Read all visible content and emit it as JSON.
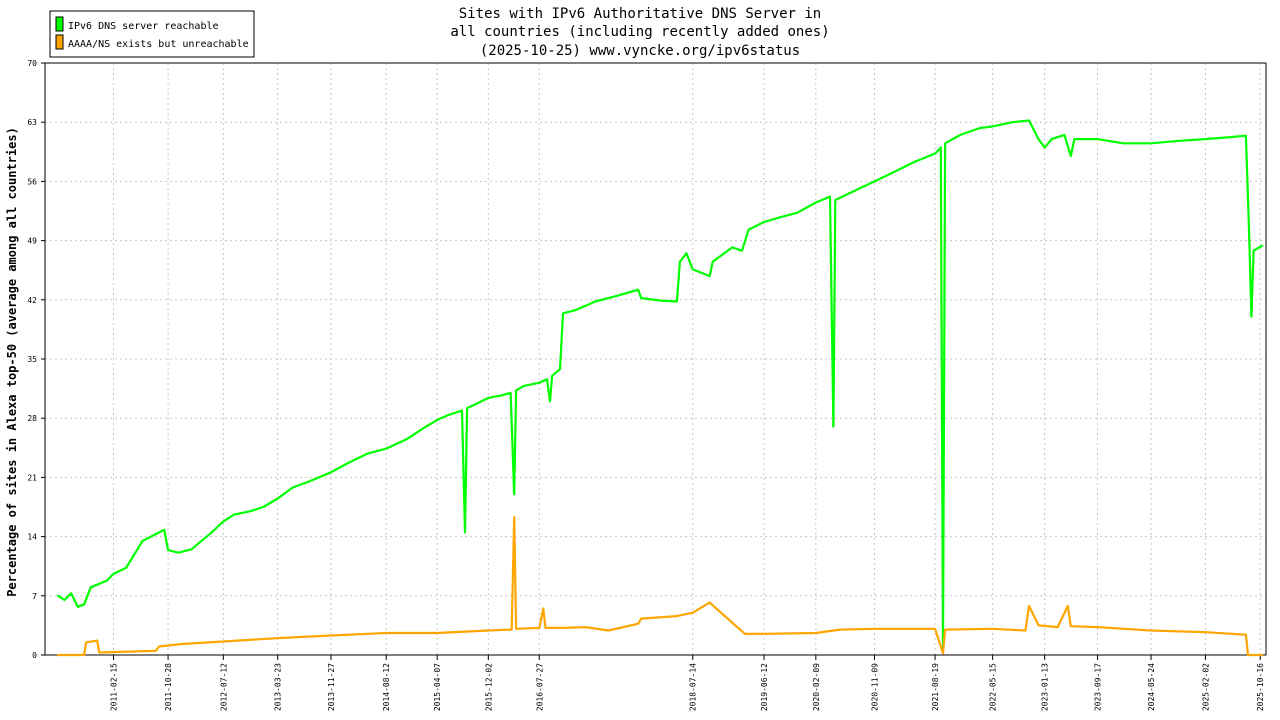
{
  "chart_data": {
    "type": "line",
    "title": [
      "Sites with IPv6 Authoritative DNS Server in",
      "all countries (including recently added ones)",
      "(2025-10-25) www.vyncke.org/ipv6status"
    ],
    "ylabel": "Percentage of sites in Alexa top-50 (average among all countries)",
    "xlabel": "",
    "ylim": [
      0,
      70
    ],
    "yticks": [
      0,
      7,
      14,
      21,
      28,
      35,
      42,
      49,
      56,
      63,
      70
    ],
    "xlim": [
      "2010-04-01",
      "2025-11-12"
    ],
    "xticks": [
      "2011-02-15",
      "2011-10-28",
      "2012-07-12",
      "2013-03-23",
      "2013-11-27",
      "2014-08-12",
      "2015-04-07",
      "2015-12-02",
      "2016-07-27",
      "2018-07-14",
      "2019-06-12",
      "2020-02-09",
      "2020-11-09",
      "2021-08-19",
      "2022-05-15",
      "2023-01-13",
      "2023-09-17",
      "2024-05-24",
      "2025-02-02",
      "2025-10-16"
    ],
    "grid": true,
    "legend_position": "top-left",
    "series": [
      {
        "name": "IPv6 DNS server reachable",
        "color": "#00ff00",
        "points": [
          [
            "2010-06-01",
            7.0
          ],
          [
            "2010-07-01",
            6.5
          ],
          [
            "2010-08-01",
            7.3
          ],
          [
            "2010-09-01",
            5.7
          ],
          [
            "2010-10-01",
            6.0
          ],
          [
            "2010-11-01",
            8.0
          ],
          [
            "2011-01-15",
            8.8
          ],
          [
            "2011-02-15",
            9.6
          ],
          [
            "2011-04-15",
            10.3
          ],
          [
            "2011-07-01",
            13.5
          ],
          [
            "2011-09-01",
            14.3
          ],
          [
            "2011-10-10",
            14.8
          ],
          [
            "2011-10-28",
            12.4
          ],
          [
            "2011-12-15",
            12.1
          ],
          [
            "2012-02-15",
            12.5
          ],
          [
            "2012-04-01",
            13.5
          ],
          [
            "2012-05-15",
            14.4
          ],
          [
            "2012-07-12",
            15.8
          ],
          [
            "2012-09-01",
            16.6
          ],
          [
            "2012-11-15",
            17.0
          ],
          [
            "2013-01-15",
            17.5
          ],
          [
            "2013-03-23",
            18.5
          ],
          [
            "2013-06-01",
            19.8
          ],
          [
            "2013-08-15",
            20.5
          ],
          [
            "2013-11-27",
            21.6
          ],
          [
            "2014-02-15",
            22.7
          ],
          [
            "2014-05-15",
            23.8
          ],
          [
            "2014-08-12",
            24.4
          ],
          [
            "2014-11-15",
            25.5
          ],
          [
            "2015-02-01",
            26.8
          ],
          [
            "2015-04-07",
            27.8
          ],
          [
            "2015-06-01",
            28.4
          ],
          [
            "2015-08-01",
            28.9
          ],
          [
            "2015-08-15",
            14.5
          ],
          [
            "2015-08-25",
            29.2
          ],
          [
            "2015-10-15",
            29.8
          ],
          [
            "2015-12-02",
            30.4
          ],
          [
            "2016-02-01",
            30.7
          ],
          [
            "2016-03-15",
            31.0
          ],
          [
            "2016-04-01",
            19.0
          ],
          [
            "2016-04-10",
            31.3
          ],
          [
            "2016-05-15",
            31.8
          ],
          [
            "2016-07-27",
            32.2
          ],
          [
            "2016-09-01",
            32.6
          ],
          [
            "2016-09-15",
            30.0
          ],
          [
            "2016-09-25",
            33.0
          ],
          [
            "2016-11-01",
            33.8
          ],
          [
            "2016-11-15",
            40.4
          ],
          [
            "2017-01-15",
            40.8
          ],
          [
            "2017-04-15",
            41.8
          ],
          [
            "2017-07-15",
            42.4
          ],
          [
            "2017-11-01",
            43.2
          ],
          [
            "2017-11-15",
            42.2
          ],
          [
            "2018-02-15",
            41.9
          ],
          [
            "2018-05-01",
            41.8
          ],
          [
            "2018-05-15",
            46.5
          ],
          [
            "2018-06-15",
            47.5
          ],
          [
            "2018-07-14",
            45.6
          ],
          [
            "2018-10-01",
            44.8
          ],
          [
            "2018-10-15",
            46.5
          ],
          [
            "2019-01-15",
            48.2
          ],
          [
            "2019-03-01",
            47.8
          ],
          [
            "2019-04-01",
            50.3
          ],
          [
            "2019-06-12",
            51.2
          ],
          [
            "2019-09-01",
            51.8
          ],
          [
            "2019-11-15",
            52.3
          ],
          [
            "2020-02-09",
            53.5
          ],
          [
            "2020-04-15",
            54.2
          ],
          [
            "2020-05-01",
            27.0
          ],
          [
            "2020-05-10",
            53.8
          ],
          [
            "2020-07-15",
            54.6
          ],
          [
            "2020-11-09",
            56.0
          ],
          [
            "2021-02-15",
            57.2
          ],
          [
            "2021-05-15",
            58.3
          ],
          [
            "2021-08-19",
            59.3
          ],
          [
            "2021-09-15",
            60.0
          ],
          [
            "2021-09-25",
            1.0
          ],
          [
            "2021-10-05",
            60.5
          ],
          [
            "2021-12-15",
            61.5
          ],
          [
            "2022-03-15",
            62.3
          ],
          [
            "2022-05-15",
            62.5
          ],
          [
            "2022-08-15",
            63.0
          ],
          [
            "2022-11-01",
            63.2
          ],
          [
            "2022-12-15",
            61.0
          ],
          [
            "2023-01-13",
            60.0
          ],
          [
            "2023-02-15",
            61.0
          ],
          [
            "2023-04-15",
            61.5
          ],
          [
            "2023-05-15",
            59.0
          ],
          [
            "2023-06-01",
            61.0
          ],
          [
            "2023-09-17",
            61.0
          ],
          [
            "2024-01-15",
            60.5
          ],
          [
            "2024-05-24",
            60.5
          ],
          [
            "2024-10-01",
            60.8
          ],
          [
            "2025-02-02",
            61.0
          ],
          [
            "2025-05-15",
            61.2
          ],
          [
            "2025-08-10",
            61.4
          ],
          [
            "2025-08-25",
            50.0
          ],
          [
            "2025-09-05",
            40.0
          ],
          [
            "2025-09-15",
            47.8
          ],
          [
            "2025-10-25",
            48.4
          ]
        ]
      },
      {
        "name": "AAAA/NS exists but unreachable",
        "color": "#ffa500",
        "points": [
          [
            "2010-06-01",
            0.0
          ],
          [
            "2010-10-01",
            0.0
          ],
          [
            "2010-10-10",
            1.5
          ],
          [
            "2010-12-01",
            1.7
          ],
          [
            "2010-12-10",
            0.3
          ],
          [
            "2011-05-01",
            0.4
          ],
          [
            "2011-09-01",
            0.5
          ],
          [
            "2011-09-15",
            1.0
          ],
          [
            "2012-01-01",
            1.3
          ],
          [
            "2012-07-12",
            1.6
          ],
          [
            "2013-03-23",
            2.0
          ],
          [
            "2013-11-27",
            2.3
          ],
          [
            "2014-08-12",
            2.6
          ],
          [
            "2015-04-07",
            2.6
          ],
          [
            "2015-12-02",
            2.9
          ],
          [
            "2016-03-20",
            3.0
          ],
          [
            "2016-04-01",
            16.3
          ],
          [
            "2016-04-10",
            3.1
          ],
          [
            "2016-07-27",
            3.2
          ],
          [
            "2016-08-15",
            5.5
          ],
          [
            "2016-08-25",
            3.2
          ],
          [
            "2016-11-15",
            3.2
          ],
          [
            "2017-03-01",
            3.3
          ],
          [
            "2017-06-15",
            2.9
          ],
          [
            "2017-11-01",
            3.7
          ],
          [
            "2017-11-15",
            4.3
          ],
          [
            "2018-05-01",
            4.6
          ],
          [
            "2018-07-14",
            5.0
          ],
          [
            "2018-10-01",
            6.2
          ],
          [
            "2018-12-15",
            4.5
          ],
          [
            "2019-03-15",
            2.5
          ],
          [
            "2019-06-12",
            2.5
          ],
          [
            "2020-02-09",
            2.6
          ],
          [
            "2020-06-01",
            3.0
          ],
          [
            "2020-11-09",
            3.1
          ],
          [
            "2021-08-19",
            3.1
          ],
          [
            "2021-09-25",
            0.2
          ],
          [
            "2021-10-05",
            3.0
          ],
          [
            "2022-05-15",
            3.1
          ],
          [
            "2022-10-15",
            2.9
          ],
          [
            "2022-11-01",
            5.8
          ],
          [
            "2022-12-15",
            3.5
          ],
          [
            "2023-03-15",
            3.3
          ],
          [
            "2023-05-01",
            5.8
          ],
          [
            "2023-05-15",
            3.4
          ],
          [
            "2023-09-17",
            3.3
          ],
          [
            "2024-05-24",
            2.9
          ],
          [
            "2025-02-02",
            2.7
          ],
          [
            "2025-08-10",
            2.4
          ],
          [
            "2025-08-20",
            0.0
          ],
          [
            "2025-10-25",
            0.0
          ]
        ]
      }
    ]
  }
}
